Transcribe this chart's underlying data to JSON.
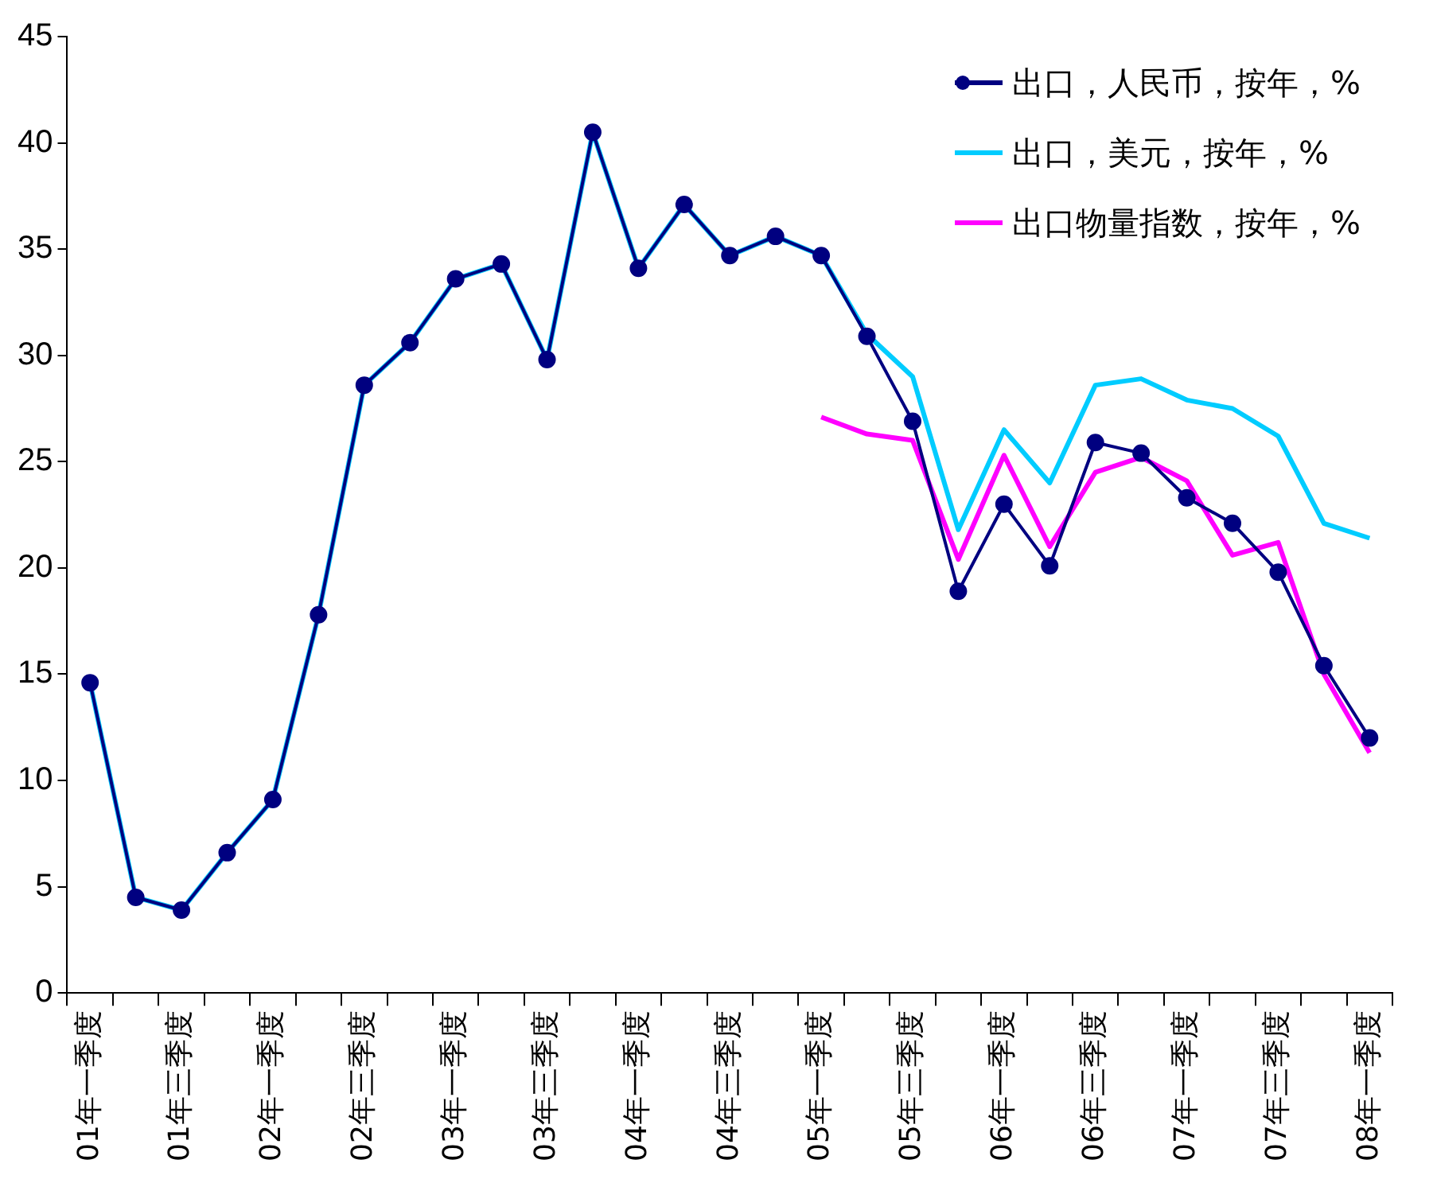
{
  "chart_data": {
    "type": "line",
    "categories": [
      "01年一季度",
      null,
      "01年三季度",
      null,
      "02年一季度",
      null,
      "02年三季度",
      null,
      "03年一季度",
      null,
      "03年三季度",
      null,
      "04年一季度",
      null,
      "04年三季度",
      null,
      "05年一季度",
      null,
      "05年三季度",
      null,
      "06年一季度",
      null,
      "06年三季度",
      null,
      "07年一季度",
      null,
      "07年三季度",
      null,
      "08年一季度"
    ],
    "series": [
      {
        "name": "出口，人民币，按年，%",
        "color": "#000080",
        "marker": "circle",
        "values": [
          14.6,
          4.5,
          3.9,
          6.6,
          9.1,
          17.8,
          28.6,
          30.6,
          33.6,
          34.3,
          29.8,
          40.5,
          34.1,
          37.1,
          34.7,
          35.6,
          34.7,
          30.9,
          26.9,
          18.9,
          23.0,
          20.1,
          25.9,
          25.4,
          23.3,
          22.1,
          19.8,
          15.4,
          12.0
        ]
      },
      {
        "name": "出口，美元，按年，%",
        "color": "#00ccff",
        "marker": "none",
        "values": [
          14.6,
          4.5,
          3.9,
          6.6,
          9.1,
          17.8,
          28.6,
          30.6,
          33.6,
          34.3,
          29.8,
          40.5,
          34.1,
          37.1,
          34.7,
          35.6,
          34.7,
          31.0,
          29.0,
          21.8,
          26.5,
          24.0,
          28.6,
          28.9,
          27.9,
          27.5,
          26.2,
          22.1,
          21.4
        ]
      },
      {
        "name": "出口物量指数，按年，%",
        "color": "#ff00ff",
        "marker": "none",
        "values": [
          null,
          null,
          null,
          null,
          null,
          null,
          null,
          null,
          null,
          null,
          null,
          null,
          null,
          null,
          null,
          null,
          27.1,
          26.3,
          26.0,
          20.4,
          25.3,
          21.0,
          24.5,
          25.2,
          24.1,
          20.6,
          21.2,
          15.0,
          11.3
        ]
      }
    ],
    "ylim": [
      0,
      45
    ],
    "yticks": [
      0,
      5,
      10,
      15,
      20,
      25,
      30,
      35,
      40,
      45
    ],
    "grid": false,
    "legend": "top right",
    "line_style": "solid"
  }
}
